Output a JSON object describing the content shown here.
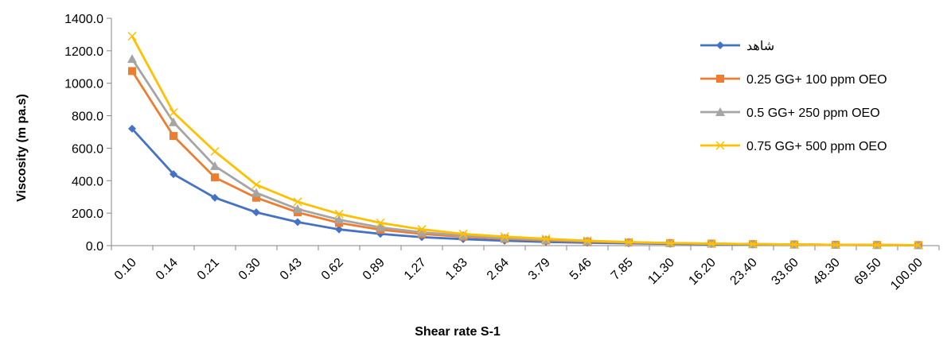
{
  "chart_data": {
    "type": "line",
    "title": "",
    "xlabel": "Shear rate S-1",
    "ylabel": "Viscosity  (m pa.s)",
    "ylim": [
      0,
      1400
    ],
    "yticks": [
      "0.0",
      "200.0",
      "400.0",
      "600.0",
      "800.0",
      "1000.0",
      "1200.0",
      "1400.0"
    ],
    "categories": [
      "0.10",
      "0.14",
      "0.21",
      "0.30",
      "0.43",
      "0.62",
      "0.89",
      "1.27",
      "1.83",
      "2.64",
      "3.79",
      "5.46",
      "7.85",
      "11.30",
      "16.20",
      "23.40",
      "33.60",
      "48.30",
      "69.50",
      "100.00"
    ],
    "grid": false,
    "legend_position": "right",
    "series": [
      {
        "name": "شاهد",
        "color": "#4472C4",
        "marker": "diamond",
        "values": [
          720,
          440,
          295,
          205,
          145,
          100,
          72,
          52,
          40,
          30,
          23,
          18,
          14,
          11,
          9,
          7,
          5,
          4,
          3,
          2
        ]
      },
      {
        "name": "0.25 GG+ 100 ppm OEO",
        "color": "#ED7D31",
        "marker": "square",
        "values": [
          1075,
          675,
          420,
          295,
          205,
          140,
          98,
          72,
          55,
          42,
          32,
          25,
          19,
          15,
          12,
          9,
          7,
          5,
          4,
          3
        ]
      },
      {
        "name": "0.5 GG+ 250 ppm OEO",
        "color": "#A5A5A5",
        "marker": "triangle",
        "values": [
          1150,
          760,
          490,
          325,
          225,
          160,
          112,
          82,
          62,
          46,
          36,
          28,
          21,
          16,
          12,
          9,
          7,
          5,
          4,
          3
        ]
      },
      {
        "name": "0.75 GG+ 500 ppm OEO",
        "color": "#FFC000",
        "marker": "x",
        "values": [
          1290,
          820,
          580,
          375,
          270,
          195,
          140,
          100,
          72,
          55,
          42,
          30,
          22,
          16,
          12,
          9,
          7,
          5,
          4,
          3
        ]
      }
    ]
  }
}
